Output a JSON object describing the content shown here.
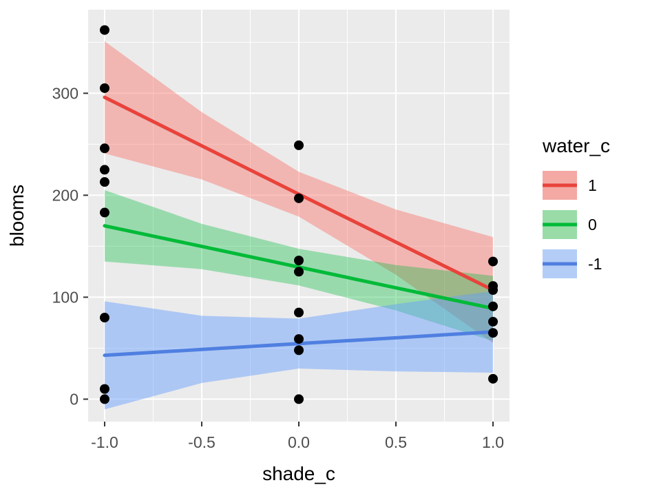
{
  "chart_data": {
    "type": "scatter",
    "title": "",
    "xlabel": "shade_c",
    "ylabel": "blooms",
    "xlim": [
      -1.085,
      1.085
    ],
    "ylim": [
      -22,
      382
    ],
    "x_ticks": [
      -1.0,
      -0.5,
      0.0,
      0.5,
      1.0
    ],
    "x_tick_labels": [
      "-1.0",
      "-0.5",
      "0.0",
      "0.5",
      "1.0"
    ],
    "x_minor_ticks": [
      -0.75,
      -0.25,
      0.25,
      0.75
    ],
    "y_ticks": [
      0,
      100,
      200,
      300
    ],
    "y_tick_labels": [
      "0",
      "100",
      "200",
      "300"
    ],
    "y_minor_ticks": [
      50,
      150,
      250,
      350
    ],
    "grid_on": true,
    "panel_bg": "#EBEBEB",
    "grid_color": "#FFFFFF",
    "point_color": "#000000",
    "points": [
      [
        -1,
        0
      ],
      [
        -1,
        10
      ],
      [
        -1,
        80
      ],
      [
        -1,
        183
      ],
      [
        -1,
        213
      ],
      [
        -1,
        225
      ],
      [
        -1,
        246
      ],
      [
        -1,
        305
      ],
      [
        -1,
        362
      ],
      [
        0,
        0
      ],
      [
        0,
        48
      ],
      [
        0,
        59
      ],
      [
        0,
        85
      ],
      [
        0,
        125
      ],
      [
        0,
        136
      ],
      [
        0,
        197
      ],
      [
        0,
        249
      ],
      [
        1,
        20
      ],
      [
        1,
        65
      ],
      [
        1,
        76
      ],
      [
        1,
        91
      ],
      [
        1,
        107
      ],
      [
        1,
        111
      ],
      [
        1,
        135
      ]
    ],
    "series": [
      {
        "name": "1",
        "line_color": "#E8433C",
        "fill_color": "#F8766D",
        "fill_opacity": 0.45,
        "x": [
          -1,
          -0.5,
          0,
          0.5,
          1
        ],
        "line": [
          296,
          248.5,
          201,
          154,
          107
        ],
        "upper": [
          351,
          281.5,
          223,
          186,
          159
        ],
        "lower": [
          241,
          215.5,
          179,
          122,
          55
        ]
      },
      {
        "name": "0",
        "line_color": "#00BA38",
        "fill_color": "#00BA38",
        "fill_opacity": 0.35,
        "x": [
          -1,
          -0.5,
          0,
          0.5,
          1
        ],
        "line": [
          170,
          149.8,
          129.5,
          109.2,
          89
        ],
        "upper": [
          205,
          172,
          147.5,
          131.5,
          121
        ],
        "lower": [
          135,
          127.5,
          111.5,
          87,
          57
        ]
      },
      {
        "name": "-1",
        "line_color": "#4F7FE0",
        "fill_color": "#619CFF",
        "fill_opacity": 0.45,
        "x": [
          -1,
          -0.5,
          0,
          0.5,
          1
        ],
        "line": [
          43,
          48.8,
          54.5,
          60.2,
          66
        ],
        "upper": [
          96,
          81.8,
          79,
          93.2,
          106
        ],
        "lower": [
          -10,
          15.8,
          30,
          27.2,
          26
        ]
      }
    ],
    "legend": {
      "title": "water_c",
      "position": "right",
      "entries": [
        {
          "label": "1",
          "line_color": "#E8433C",
          "swatch_fill": "#F4A9A4"
        },
        {
          "label": "0",
          "line_color": "#00BA38",
          "swatch_fill": "#99DCA8"
        },
        {
          "label": "-1",
          "line_color": "#4F7FE0",
          "swatch_fill": "#B3CDF6"
        }
      ]
    }
  }
}
